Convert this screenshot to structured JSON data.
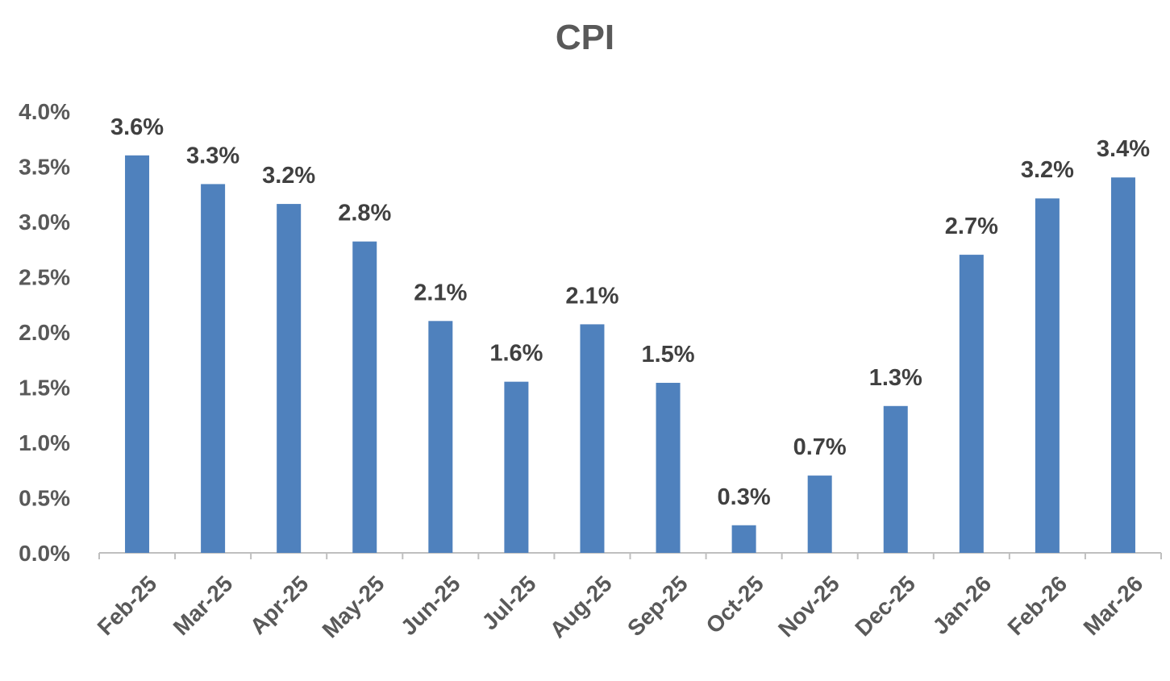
{
  "chart_data": {
    "type": "bar",
    "title": "CPI",
    "xlabel": "",
    "ylabel": "",
    "categories": [
      "Feb-25",
      "Mar-25",
      "Apr-25",
      "May-25",
      "Jun-25",
      "Jul-25",
      "Aug-25",
      "Sep-25",
      "Oct-25",
      "Nov-25",
      "Dec-25",
      "Jan-26",
      "Feb-26",
      "Mar-26"
    ],
    "values": [
      3.6,
      3.34,
      3.16,
      2.82,
      2.1,
      1.55,
      2.07,
      1.54,
      0.25,
      0.7,
      1.33,
      2.7,
      3.21,
      3.4
    ],
    "data_labels": [
      "3.6%",
      "3.3%",
      "3.2%",
      "2.8%",
      "2.1%",
      "1.6%",
      "2.1%",
      "1.5%",
      "0.3%",
      "0.7%",
      "1.3%",
      "2.7%",
      "3.2%",
      "3.4%"
    ],
    "ylim": [
      0,
      4.0
    ],
    "yticks": [
      0,
      0.5,
      1.0,
      1.5,
      2.0,
      2.5,
      3.0,
      3.5,
      4.0
    ],
    "ytick_labels": [
      "0.0%",
      "0.5%",
      "1.0%",
      "1.5%",
      "2.0%",
      "2.5%",
      "3.0%",
      "3.5%",
      "4.0%"
    ],
    "grid": false,
    "legend": "none",
    "colors": {
      "bar": "#4F81BD",
      "text": "#595959",
      "data_label": "#404040",
      "axis": "#BFBFBF"
    }
  }
}
